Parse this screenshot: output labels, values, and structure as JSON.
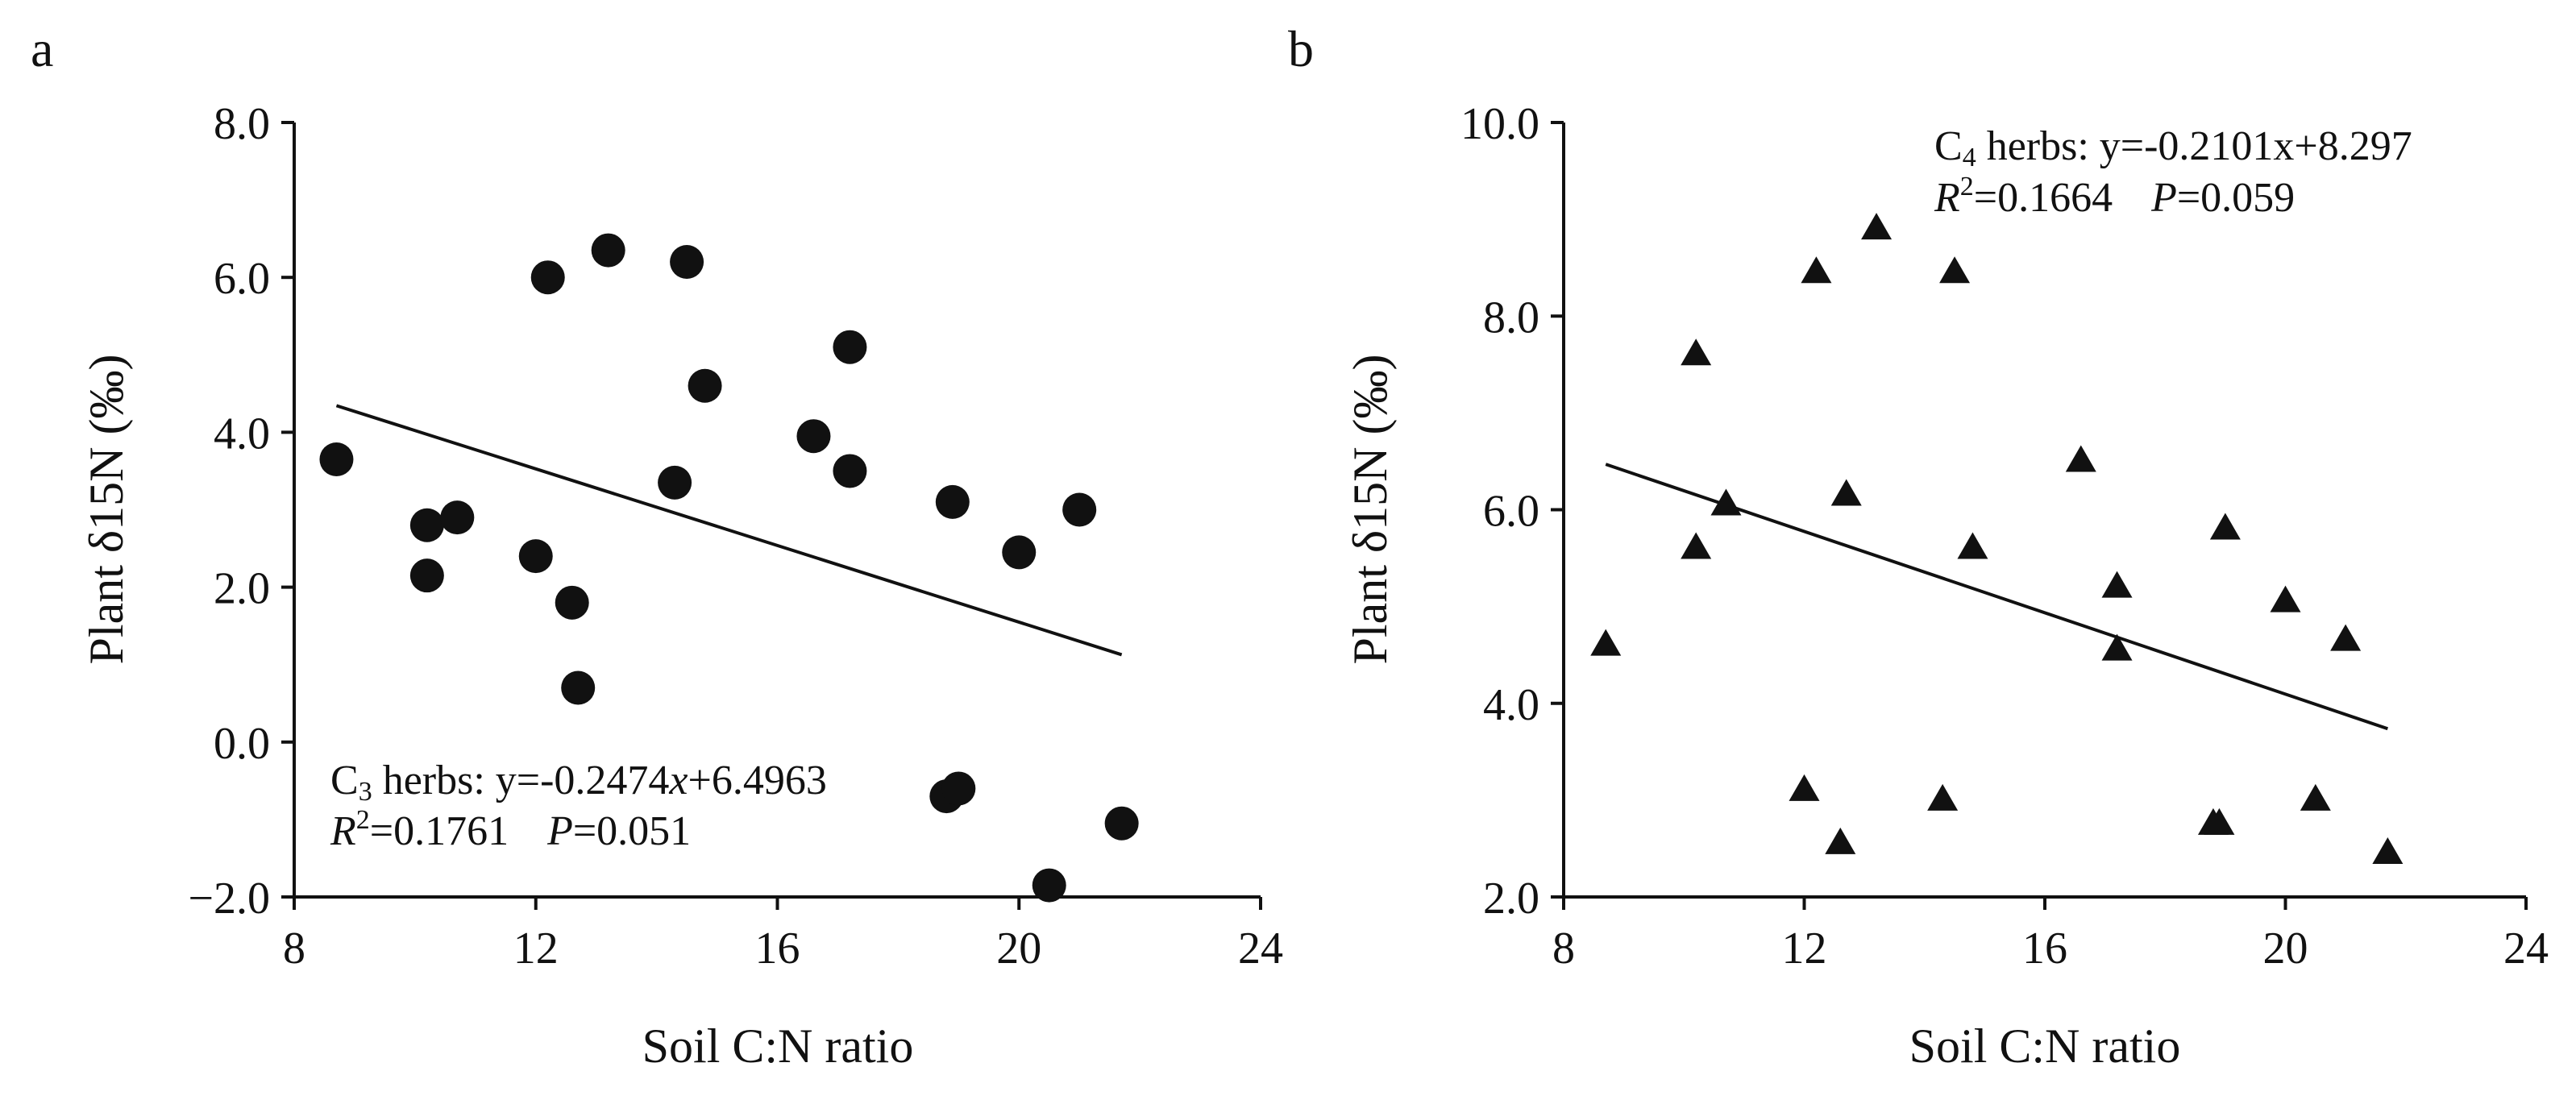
{
  "chart_data": [
    {
      "type": "scatter",
      "panel_label": "a",
      "xlabel": "Soil C:N ratio",
      "ylabel": "Plant δ15N (‰)",
      "xlim": [
        8,
        24
      ],
      "ylim": [
        -2,
        8
      ],
      "xticks": [
        8,
        12,
        16,
        20,
        24
      ],
      "xtick_labels": [
        "8",
        "12",
        "16",
        "20",
        "24"
      ],
      "yticks": [
        -2,
        0,
        2,
        4,
        6,
        8
      ],
      "ytick_labels": [
        "−2.0",
        "0.0",
        "2.0",
        "4.0",
        "6.0",
        "8.0"
      ],
      "marker": "circle",
      "series": [
        {
          "name": "C3 herbs",
          "x": [
            8.7,
            10.2,
            10.2,
            10.7,
            12.0,
            12.2,
            12.6,
            12.7,
            13.2,
            14.3,
            14.5,
            14.8,
            16.6,
            17.2,
            17.2,
            18.8,
            18.9,
            19.0,
            20.0,
            20.5,
            21.0,
            21.7
          ],
          "y": [
            3.65,
            2.8,
            2.15,
            2.9,
            2.4,
            6.0,
            1.8,
            0.7,
            6.35,
            3.35,
            6.2,
            4.6,
            3.95,
            5.1,
            3.5,
            -0.7,
            3.1,
            -0.6,
            2.45,
            -1.85,
            3.0,
            -1.05
          ]
        }
      ],
      "fit": {
        "slope": -0.2474,
        "intercept": 6.4963,
        "x_range": [
          8.7,
          21.7
        ]
      },
      "annotation": {
        "species": "C",
        "species_sub": "3",
        "line1_rest": " herbs: y=-0.2474",
        "x_var": "x",
        "line1_tail": "+6.4963",
        "r2_label": "R",
        "r2_sup": "2",
        "r2_value": "=0.1761",
        "p_label": "P",
        "p_value": "=0.051"
      }
    },
    {
      "type": "scatter",
      "panel_label": "b",
      "xlabel": "Soil C:N ratio",
      "ylabel": "Plant δ15N (‰)",
      "xlim": [
        8,
        24
      ],
      "ylim": [
        2,
        10
      ],
      "xticks": [
        8,
        12,
        16,
        20,
        24
      ],
      "xtick_labels": [
        "8",
        "12",
        "16",
        "20",
        "24"
      ],
      "yticks": [
        2,
        4,
        6,
        8,
        10
      ],
      "ytick_labels": [
        "2.0",
        "4.0",
        "6.0",
        "8.0",
        "10.0"
      ],
      "marker": "triangle",
      "series": [
        {
          "name": "C4 herbs",
          "x": [
            8.7,
            10.2,
            10.2,
            10.7,
            12.0,
            12.2,
            12.6,
            12.7,
            13.2,
            14.3,
            14.5,
            14.8,
            16.6,
            17.2,
            17.2,
            18.8,
            18.9,
            19.0,
            20.0,
            20.5,
            21.0,
            21.7
          ],
          "y": [
            4.6,
            7.6,
            5.6,
            6.05,
            3.1,
            8.45,
            2.55,
            6.15,
            8.9,
            3.0,
            8.45,
            5.6,
            6.5,
            5.2,
            4.55,
            2.75,
            2.75,
            5.8,
            5.05,
            3.0,
            4.65,
            2.45
          ]
        }
      ],
      "fit": {
        "slope": -0.2101,
        "intercept": 8.297,
        "x_range": [
          8.7,
          21.7
        ]
      },
      "annotation": {
        "species": "C",
        "species_sub": "4",
        "line1_rest": " herbs: y=-0.2101x+8.297",
        "r2_label": "R",
        "r2_sup": "2",
        "r2_value": "=0.1664",
        "p_label": "P",
        "p_value": "=0.059"
      }
    }
  ]
}
